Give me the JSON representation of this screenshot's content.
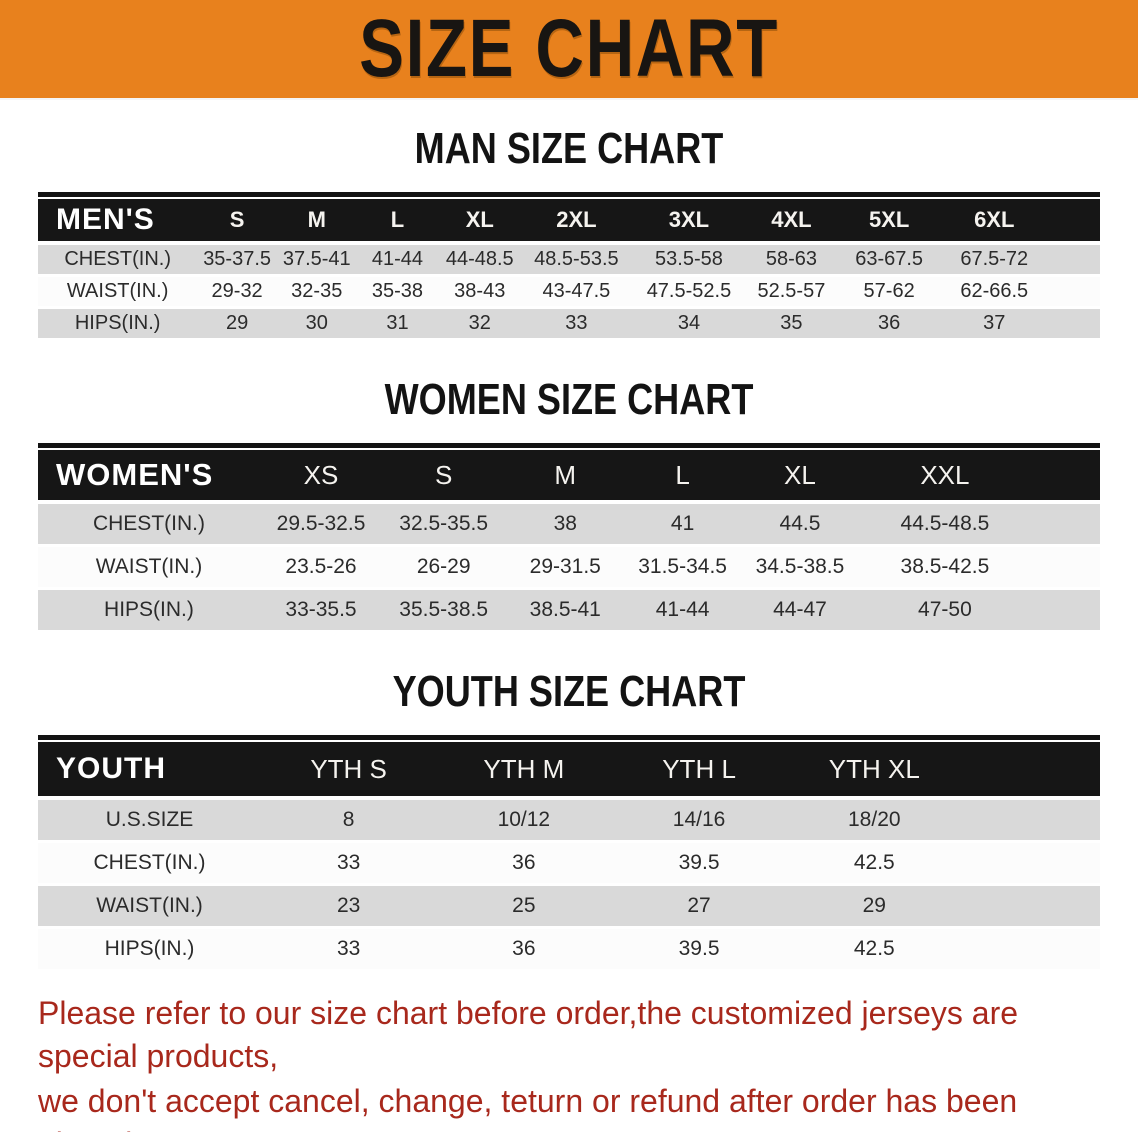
{
  "banner": {
    "title": "SIZE CHART"
  },
  "sections": [
    {
      "heading": "MAN SIZE CHART",
      "table": {
        "header_label": "MEN'S",
        "sizes": [
          "S",
          "M",
          "L",
          "XL",
          "2XL",
          "3XL",
          "4XL",
          "5XL",
          "6XL"
        ],
        "rows": [
          {
            "label": "CHEST(IN.)",
            "values": [
              "35-37.5",
              "37.5-41",
              "41-44",
              "44-48.5",
              "48.5-53.5",
              "53.5-58",
              "58-63",
              "63-67.5",
              "67.5-72"
            ]
          },
          {
            "label": "WAIST(IN.)",
            "values": [
              "29-32",
              "32-35",
              "35-38",
              "38-43",
              "43-47.5",
              "47.5-52.5",
              "52.5-57",
              "57-62",
              "62-66.5"
            ]
          },
          {
            "label": "HIPS(IN.)",
            "values": [
              "29",
              "30",
              "31",
              "32",
              "33",
              "34",
              "35",
              "36",
              "37"
            ]
          }
        ]
      }
    },
    {
      "heading": "WOMEN SIZE CHART",
      "table": {
        "header_label": "WOMEN'S",
        "sizes": [
          "XS",
          "S",
          "M",
          "L",
          "XL",
          "XXL"
        ],
        "rows": [
          {
            "label": "CHEST(IN.)",
            "values": [
              "29.5-32.5",
              "32.5-35.5",
              "38",
              "41",
              "44.5",
              "44.5-48.5"
            ]
          },
          {
            "label": "WAIST(IN.)",
            "values": [
              "23.5-26",
              "26-29",
              "29-31.5",
              "31.5-34.5",
              "34.5-38.5",
              "38.5-42.5"
            ]
          },
          {
            "label": "HIPS(IN.)",
            "values": [
              "33-35.5",
              "35.5-38.5",
              "38.5-41",
              "41-44",
              "44-47",
              "47-50"
            ]
          }
        ]
      }
    },
    {
      "heading": "YOUTH SIZE CHART",
      "table": {
        "header_label": "YOUTH",
        "sizes": [
          "YTH S",
          "YTH M",
          "YTH L",
          "YTH XL"
        ],
        "rows": [
          {
            "label": "U.S.SIZE",
            "values": [
              "8",
              "10/12",
              "14/16",
              "18/20"
            ]
          },
          {
            "label": "CHEST(IN.)",
            "values": [
              "33",
              "36",
              "39.5",
              "42.5"
            ]
          },
          {
            "label": "WAIST(IN.)",
            "values": [
              "23",
              "25",
              "27",
              "29"
            ]
          },
          {
            "label": "HIPS(IN.)",
            "values": [
              "33",
              "36",
              "39.5",
              "42.5"
            ]
          }
        ]
      }
    }
  ],
  "footer": {
    "line1": "Please refer to our size chart before order,the customized jerseys are special products,",
    "line2": "we don't accept cancel, change, teturn or refund after order has been placed!"
  },
  "colors": {
    "banner_orange": "#e8811d",
    "header_bar_black": "#161616",
    "row_gray": "#d9d9d9",
    "notice_red": "#a8281c"
  }
}
